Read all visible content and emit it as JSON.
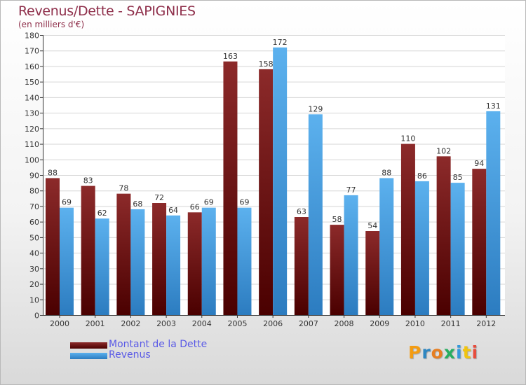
{
  "title": "Revenus/Dette - SAPIGNIES",
  "subtitle": "(en milliers d'€)",
  "colors": {
    "dette_dark": "#4a0000",
    "dette_light": "#8c2a2a",
    "revenus_dark": "#2c7cc0",
    "revenus_light": "#5cb1ee"
  },
  "chart_data": {
    "type": "bar",
    "title": "Revenus/Dette - SAPIGNIES",
    "subtitle": "(en milliers d'€)",
    "categories": [
      "2000",
      "2001",
      "2002",
      "2003",
      "2004",
      "2005",
      "2006",
      "2007",
      "2008",
      "2009",
      "2010",
      "2011",
      "2012"
    ],
    "series": [
      {
        "name": "Montant de la Dette",
        "values": [
          88,
          83,
          78,
          72,
          66,
          163,
          158,
          63,
          58,
          54,
          110,
          102,
          94
        ]
      },
      {
        "name": "Revenus",
        "values": [
          69,
          62,
          68,
          64,
          69,
          69,
          172,
          129,
          77,
          88,
          86,
          85,
          131
        ]
      }
    ],
    "ylim": [
      0,
      180
    ],
    "yticks": [
      0,
      10,
      20,
      30,
      40,
      50,
      60,
      70,
      80,
      90,
      100,
      110,
      120,
      130,
      140,
      150,
      160,
      170,
      180
    ],
    "grid": true,
    "legend": "bottom-left"
  },
  "legend": {
    "items": [
      "Montant de la Dette",
      "Revenus"
    ]
  },
  "logo": {
    "letters": [
      "P",
      "r",
      "o",
      "x",
      "i",
      "t",
      "i"
    ],
    "colors": [
      "#f39c12",
      "#2e86c1",
      "#e67e22",
      "#27ae60",
      "#3498db",
      "#f1c40f",
      "#e74c3c"
    ]
  }
}
